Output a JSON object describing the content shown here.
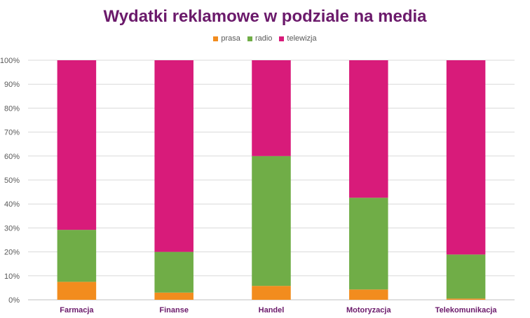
{
  "chart_data": {
    "type": "bar",
    "stacked": true,
    "title": "Wydatki reklamowe w podziale na media",
    "categories": [
      "Farmacja",
      "Finanse",
      "Handel",
      "Motoryzacja",
      "Telekomunikacja"
    ],
    "series": [
      {
        "name": "prasa",
        "color": "#f28c1e",
        "values": [
          7.5,
          3,
          5.8,
          4.3,
          0.5
        ]
      },
      {
        "name": "radio",
        "color": "#70ad47",
        "values": [
          21.7,
          17,
          54.2,
          38.3,
          18.4
        ]
      },
      {
        "name": "telewizja",
        "color": "#d81b7a",
        "values": [
          70.8,
          80,
          40,
          57.4,
          81.1
        ]
      }
    ],
    "ylim": [
      0,
      100
    ],
    "yticks": [
      "0%",
      "10%",
      "20%",
      "30%",
      "40%",
      "50%",
      "60%",
      "70%",
      "80%",
      "90%",
      "100%"
    ],
    "grid": true,
    "legend_position": "top"
  }
}
